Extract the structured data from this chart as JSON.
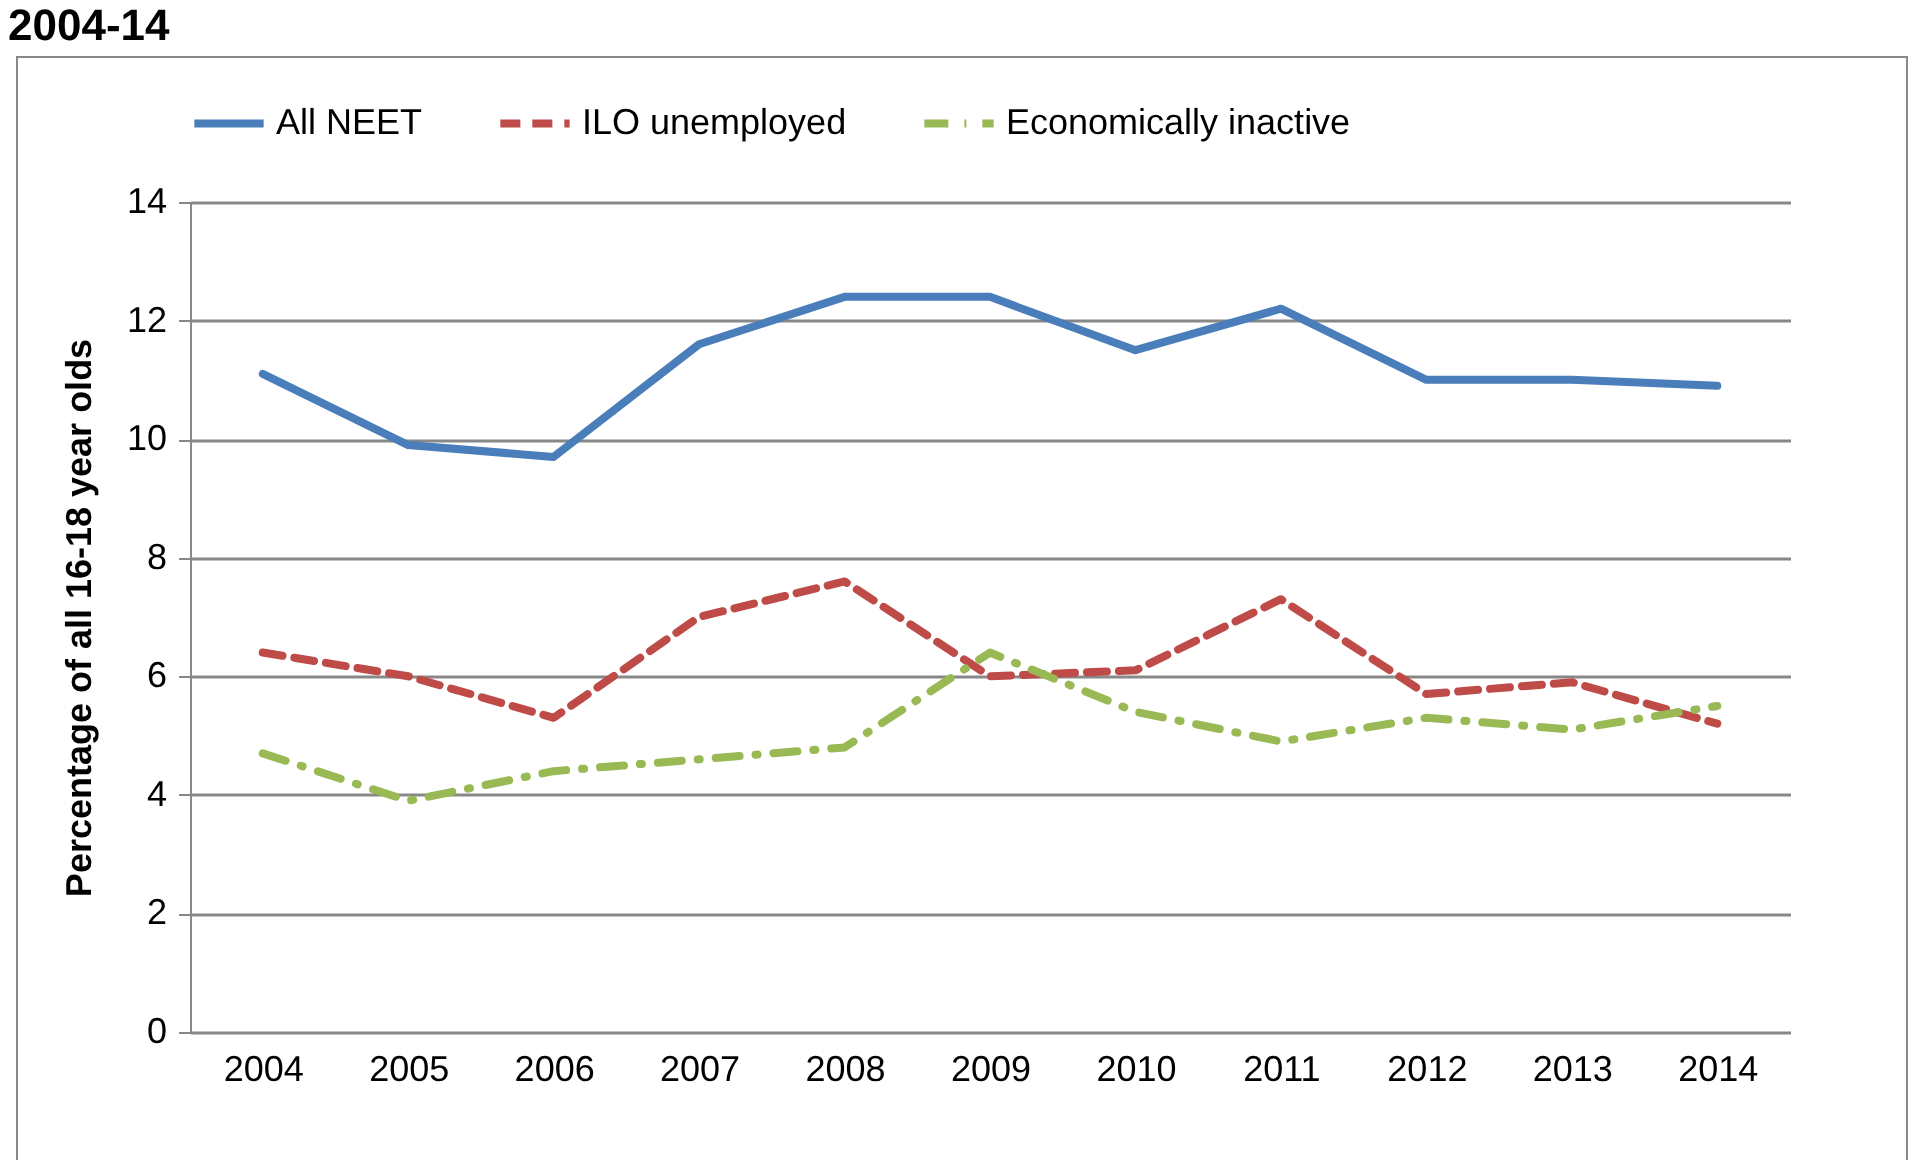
{
  "chart_data": {
    "type": "line",
    "title": "2004-14",
    "ylabel": "Percentage of all 16-18 year olds",
    "categories": [
      "2004",
      "2005",
      "2006",
      "2007",
      "2008",
      "2009",
      "2010",
      "2011",
      "2012",
      "2013",
      "2014"
    ],
    "series": [
      {
        "name": "All NEET",
        "color": "#4a7ebb",
        "line_style": "solid",
        "values": [
          11.1,
          9.9,
          9.7,
          11.6,
          12.4,
          12.4,
          11.5,
          12.2,
          11.0,
          11.0,
          10.9
        ]
      },
      {
        "name": "ILO unemployed",
        "color": "#be4b48",
        "line_style": "dashed",
        "values": [
          6.4,
          6.0,
          5.3,
          7.0,
          7.6,
          6.0,
          6.1,
          7.3,
          5.7,
          5.9,
          5.2
        ]
      },
      {
        "name": "Economically inactive",
        "color": "#98b954",
        "line_style": "dashdot",
        "values": [
          4.7,
          3.9,
          4.4,
          4.6,
          4.8,
          6.4,
          5.4,
          4.9,
          5.3,
          5.1,
          5.5
        ]
      }
    ],
    "ylim": [
      0,
      14
    ],
    "yticks": [
      0,
      2,
      4,
      6,
      8,
      10,
      12,
      14
    ],
    "grid": "y",
    "legend": "top",
    "marker": "none"
  }
}
